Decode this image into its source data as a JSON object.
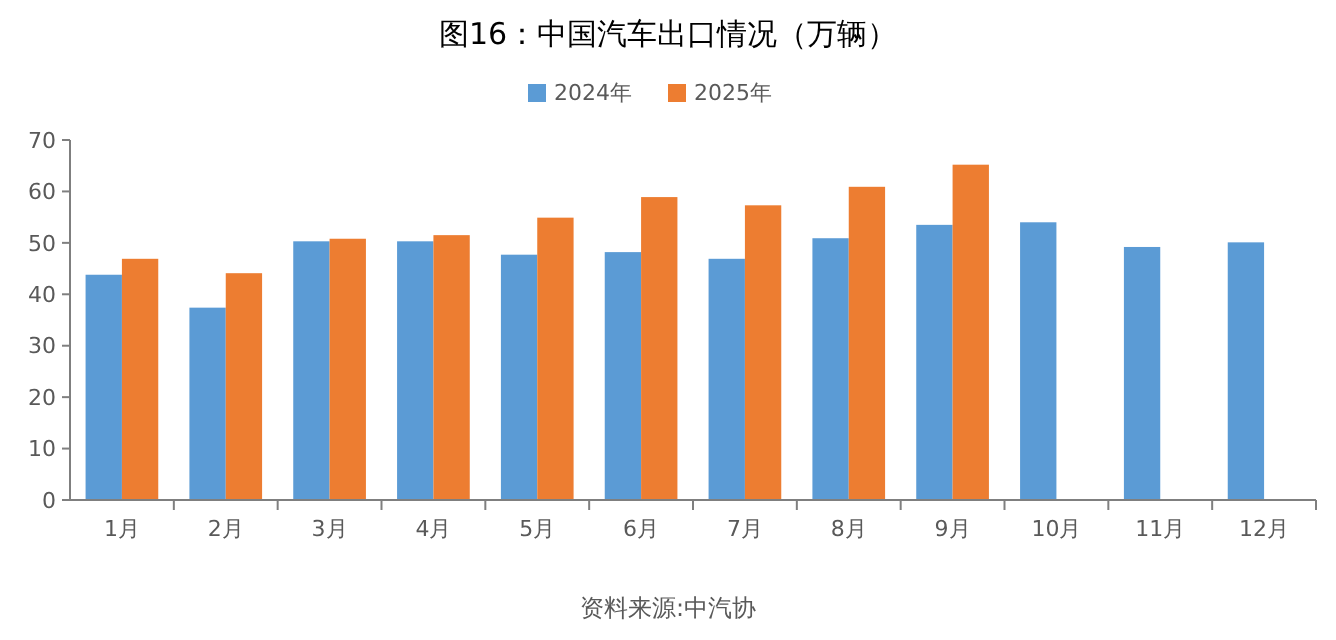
{
  "chart_data": {
    "type": "bar",
    "title": "图16：中国汽车出口情况（万辆）",
    "categories": [
      "1月",
      "2月",
      "3月",
      "4月",
      "5月",
      "6月",
      "7月",
      "8月",
      "9月",
      "10月",
      "11月",
      "12月"
    ],
    "series": [
      {
        "name": "2024年",
        "color": "#5b9bd5",
        "values": [
          43.8,
          37.4,
          50.3,
          50.3,
          47.7,
          48.2,
          46.9,
          50.9,
          53.5,
          54.0,
          49.2,
          50.1
        ]
      },
      {
        "name": "2025年",
        "color": "#ed7d31",
        "values": [
          46.9,
          44.1,
          50.8,
          51.5,
          54.9,
          58.9,
          57.3,
          60.9,
          65.2,
          null,
          null,
          null
        ]
      }
    ],
    "ylim": [
      0,
      70
    ],
    "yticks": [
      0,
      10,
      20,
      30,
      40,
      50,
      60,
      70
    ],
    "grid": false,
    "legend": "top",
    "annotations": [
      "资料来源:中汽协"
    ]
  }
}
